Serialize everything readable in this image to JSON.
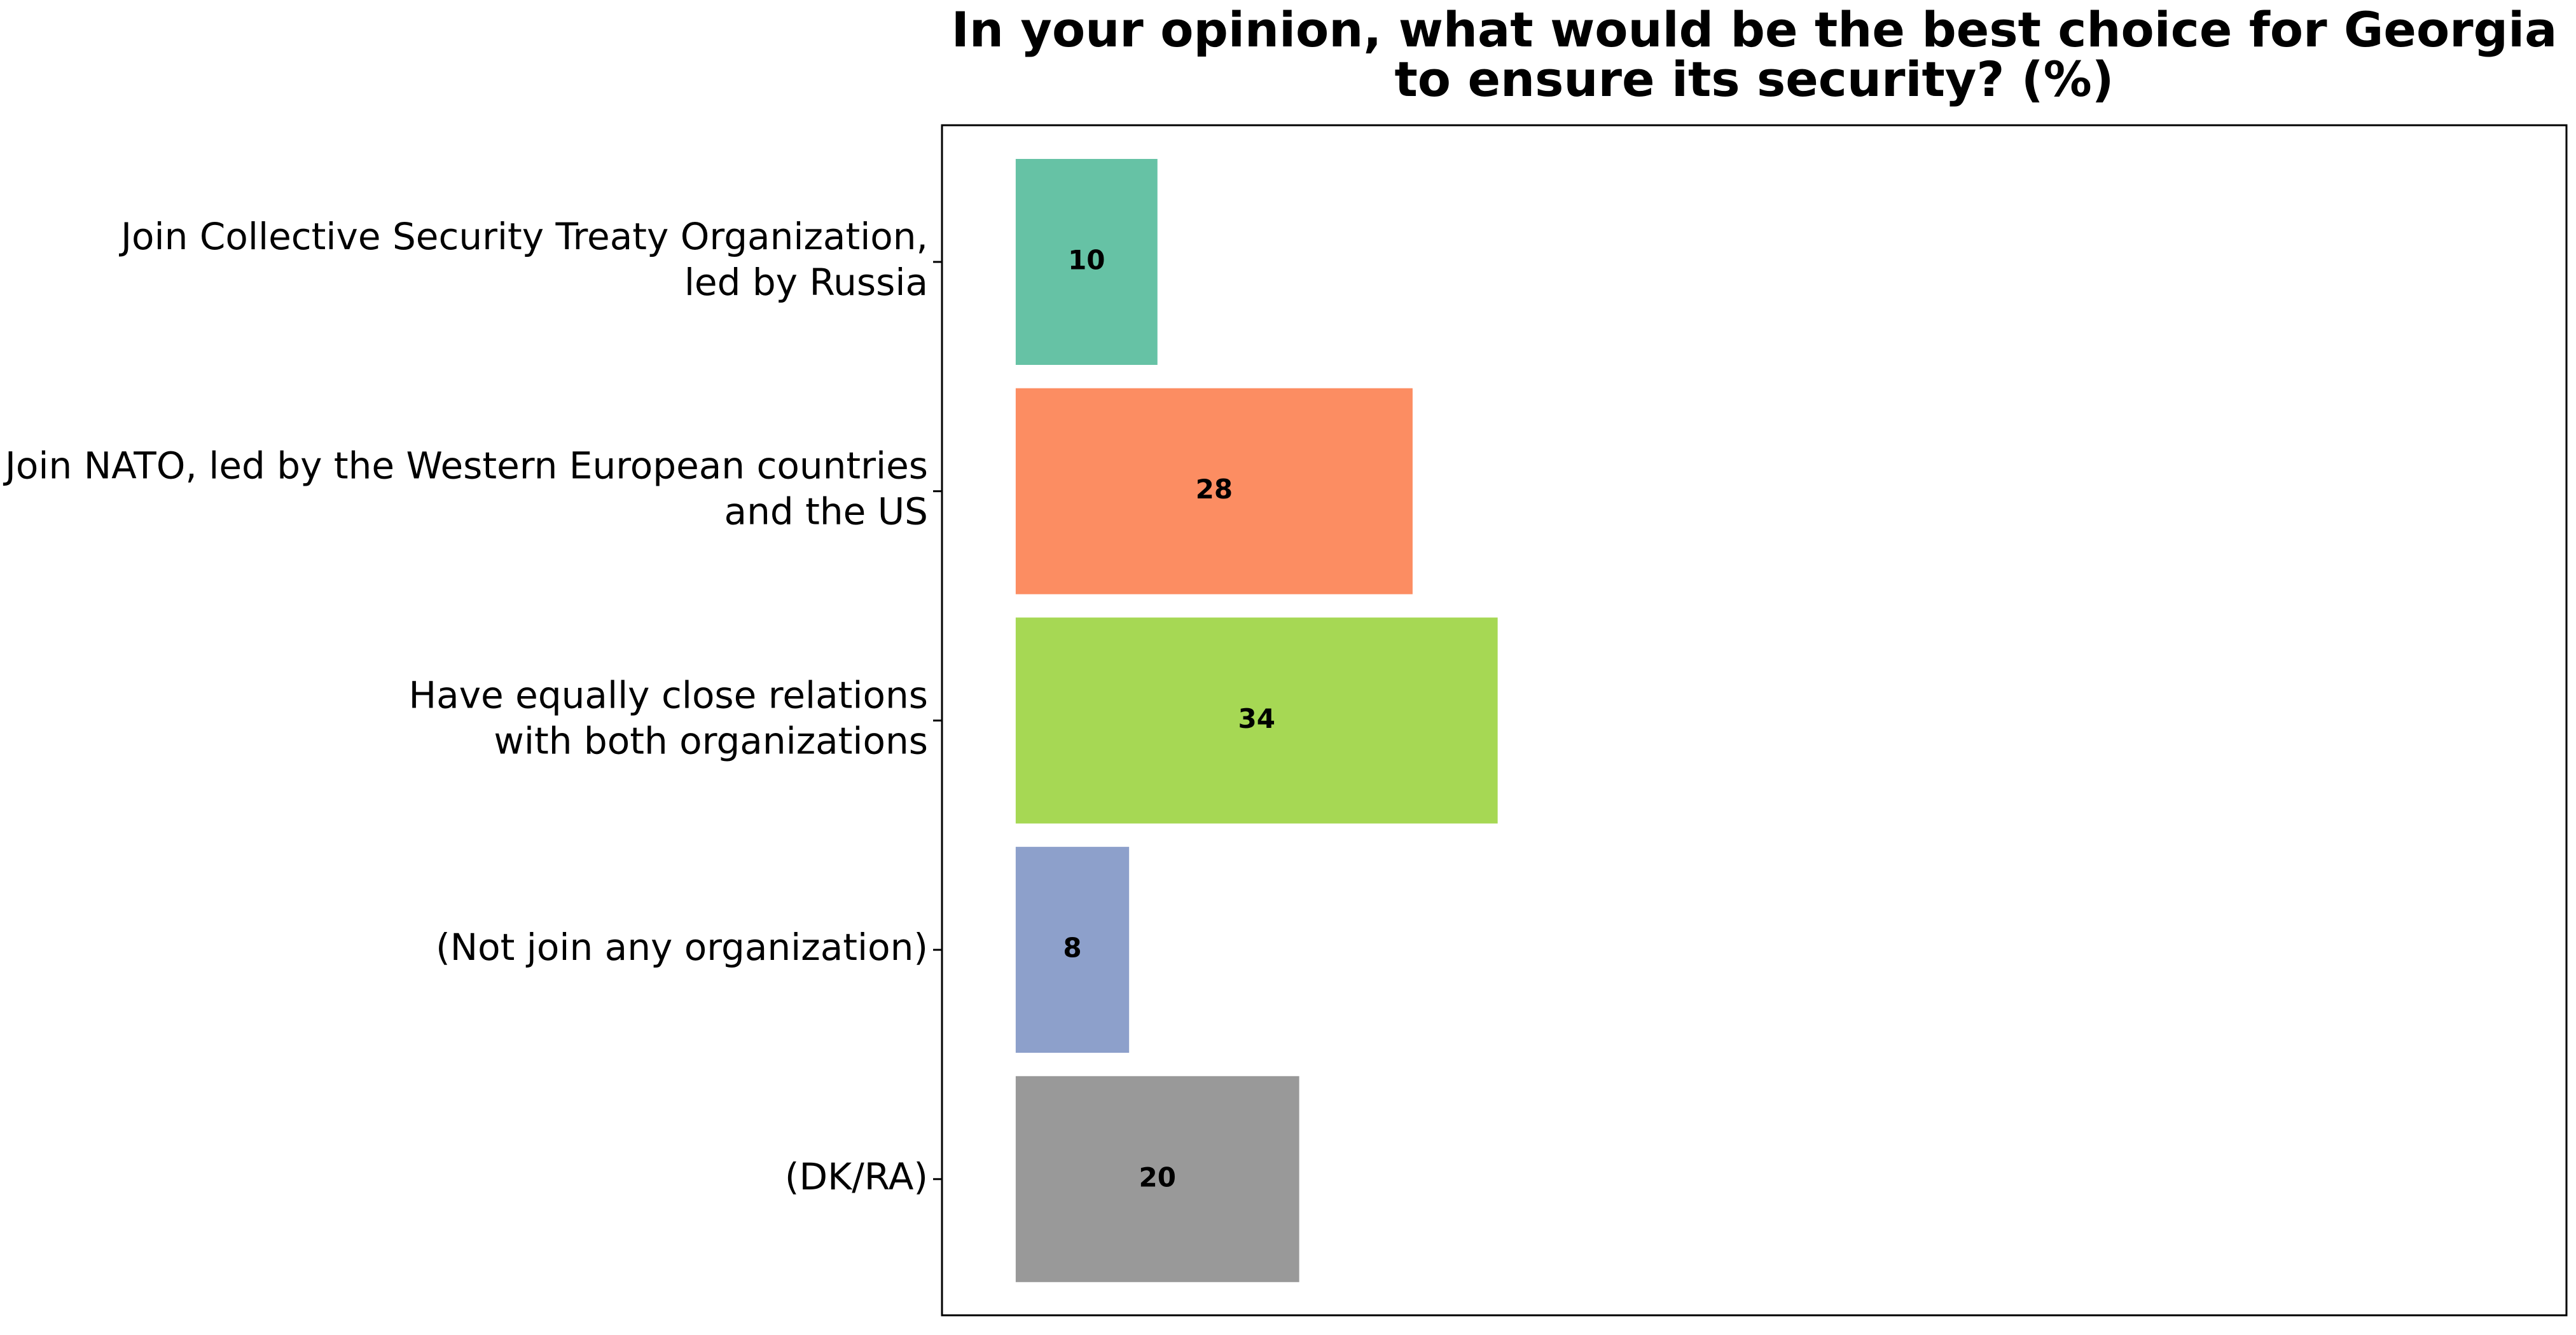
{
  "chart_data": {
    "type": "barh",
    "title": "In your opinion, what would be the best choice for Georgia\nto ensure its security? (%)",
    "categories": [
      "Join Collective Security Treaty Organization,\nled by Russia",
      "Join NATO, led by the Western European countries\nand the US",
      "Have equally close relations\nwith both organizations",
      "(Not join any organization)",
      "(DK/RA)"
    ],
    "values": [
      10,
      28,
      34,
      8,
      20
    ],
    "colors": [
      "#66c2a5",
      "#fc8d62",
      "#a6d854",
      "#8da0cb",
      "#999999"
    ],
    "xlim": [
      -5.2,
      109.4
    ]
  }
}
